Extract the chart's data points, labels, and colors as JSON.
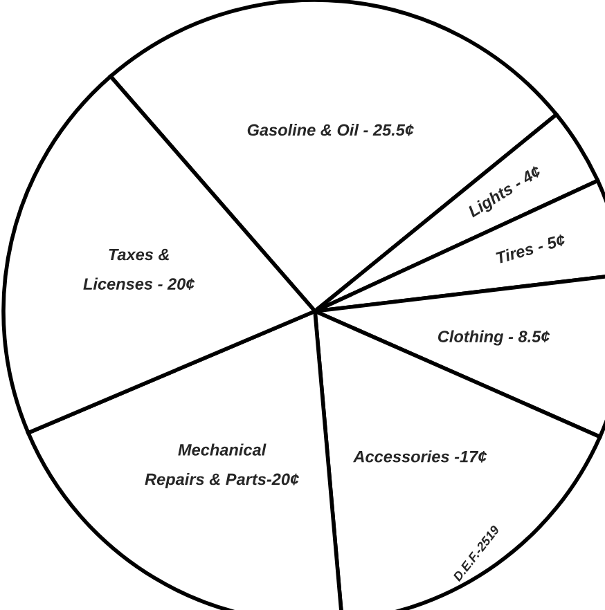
{
  "chart_data": {
    "type": "pie",
    "categories": [
      "Gasoline & Oil - ",
      "Lights - ",
      "Tires - ",
      "Clothing - ",
      "Accessories -",
      "Mechanical\nRepairs & Parts-",
      "Taxes &\nLicenses - "
    ],
    "values": [
      25.5,
      4,
      5,
      8.5,
      17,
      20,
      20
    ],
    "value_labels": [
      "25.5¢",
      "4¢",
      "5¢",
      "8.5¢",
      "17¢",
      "20¢",
      "20¢"
    ],
    "colors": [
      "#ffffff",
      "#ffffff",
      "#ffffff",
      "#ffffff",
      "#ffffff",
      "#ffffff",
      "#ffffff"
    ],
    "annotations": [
      {
        "text": "D.E.F.-2519"
      }
    ]
  }
}
